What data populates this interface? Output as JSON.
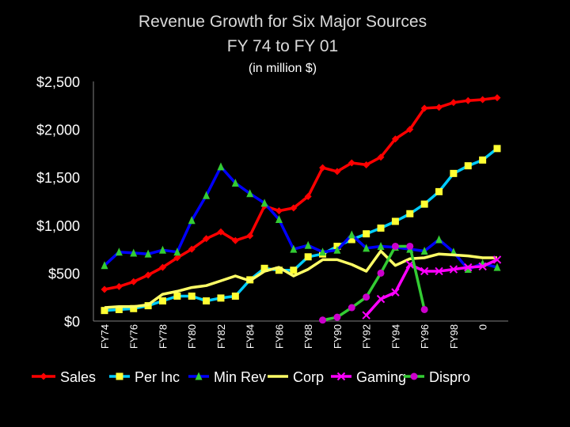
{
  "chart_data": {
    "type": "line",
    "title": "Revenue Growth for Six Major Sources",
    "subtitle": "FY 74 to FY 01",
    "ylabel": "(in million $)",
    "xlabel": "",
    "x": [
      1974,
      1975,
      1976,
      1977,
      1978,
      1979,
      1980,
      1981,
      1982,
      1983,
      1984,
      1985,
      1986,
      1987,
      1988,
      1989,
      1990,
      1991,
      1992,
      1993,
      1994,
      1995,
      1996,
      1997,
      1998,
      1999,
      2000,
      2001
    ],
    "x_tick_labels": [
      "FY74",
      "FY76",
      "FY78",
      "FY80",
      "FY82",
      "FY84",
      "FY86",
      "FY88",
      "FY90",
      "FY92",
      "FY94",
      "FY96",
      "FY98",
      "0"
    ],
    "y_tick_labels": [
      "$0",
      "$500",
      "$1,000",
      "$1,500",
      "$2,000",
      "$2,500"
    ],
    "y_ticks": [
      0,
      500,
      1000,
      1500,
      2000,
      2500
    ],
    "ylim": [
      0,
      2500
    ],
    "legend_position": "bottom",
    "grid": false,
    "series": [
      {
        "name": "Sales",
        "color": "#ff0000",
        "marker": "diamond",
        "values": [
          330,
          360,
          410,
          480,
          560,
          660,
          750,
          860,
          930,
          840,
          890,
          1200,
          1150,
          1180,
          1300,
          1600,
          1560,
          1650,
          1630,
          1710,
          1900,
          2000,
          2220,
          2230,
          2280,
          2300,
          2310,
          2330
        ]
      },
      {
        "name": "Per Inc",
        "color": "#00ccff",
        "marker": "square",
        "marker_color": "#ffff33",
        "values": [
          110,
          120,
          130,
          160,
          210,
          260,
          260,
          210,
          240,
          260,
          430,
          550,
          530,
          530,
          670,
          700,
          780,
          850,
          910,
          970,
          1040,
          1120,
          1220,
          1350,
          1540,
          1620,
          1680,
          1800
        ]
      },
      {
        "name": "Min Rev",
        "color": "#0000ff",
        "marker": "triangle",
        "marker_color": "#33cc33",
        "values": [
          580,
          720,
          710,
          700,
          740,
          720,
          1050,
          1310,
          1610,
          1440,
          1330,
          1230,
          1060,
          750,
          790,
          720,
          740,
          900,
          760,
          780,
          770,
          750,
          730,
          850,
          720,
          540,
          600,
          560
        ]
      },
      {
        "name": "Corp",
        "color": "#ffff66",
        "marker": "none",
        "values": [
          140,
          150,
          150,
          170,
          280,
          310,
          350,
          370,
          420,
          470,
          420,
          520,
          560,
          470,
          540,
          640,
          640,
          590,
          520,
          730,
          580,
          650,
          660,
          700,
          690,
          680,
          660,
          660
        ]
      },
      {
        "name": "Gaming",
        "color": "#ff00ff",
        "marker": "x",
        "values": [
          null,
          null,
          null,
          null,
          null,
          null,
          null,
          null,
          null,
          null,
          null,
          null,
          null,
          null,
          null,
          null,
          null,
          null,
          60,
          230,
          300,
          590,
          520,
          520,
          540,
          560,
          570,
          640
        ]
      },
      {
        "name": "Dispro",
        "color": "#33cc33",
        "marker": "circle",
        "marker_color": "#cc00cc",
        "values": [
          null,
          null,
          null,
          null,
          null,
          null,
          null,
          null,
          null,
          null,
          null,
          null,
          null,
          null,
          null,
          10,
          40,
          140,
          250,
          500,
          780,
          780,
          120,
          null,
          null,
          null,
          null,
          null
        ]
      }
    ]
  }
}
